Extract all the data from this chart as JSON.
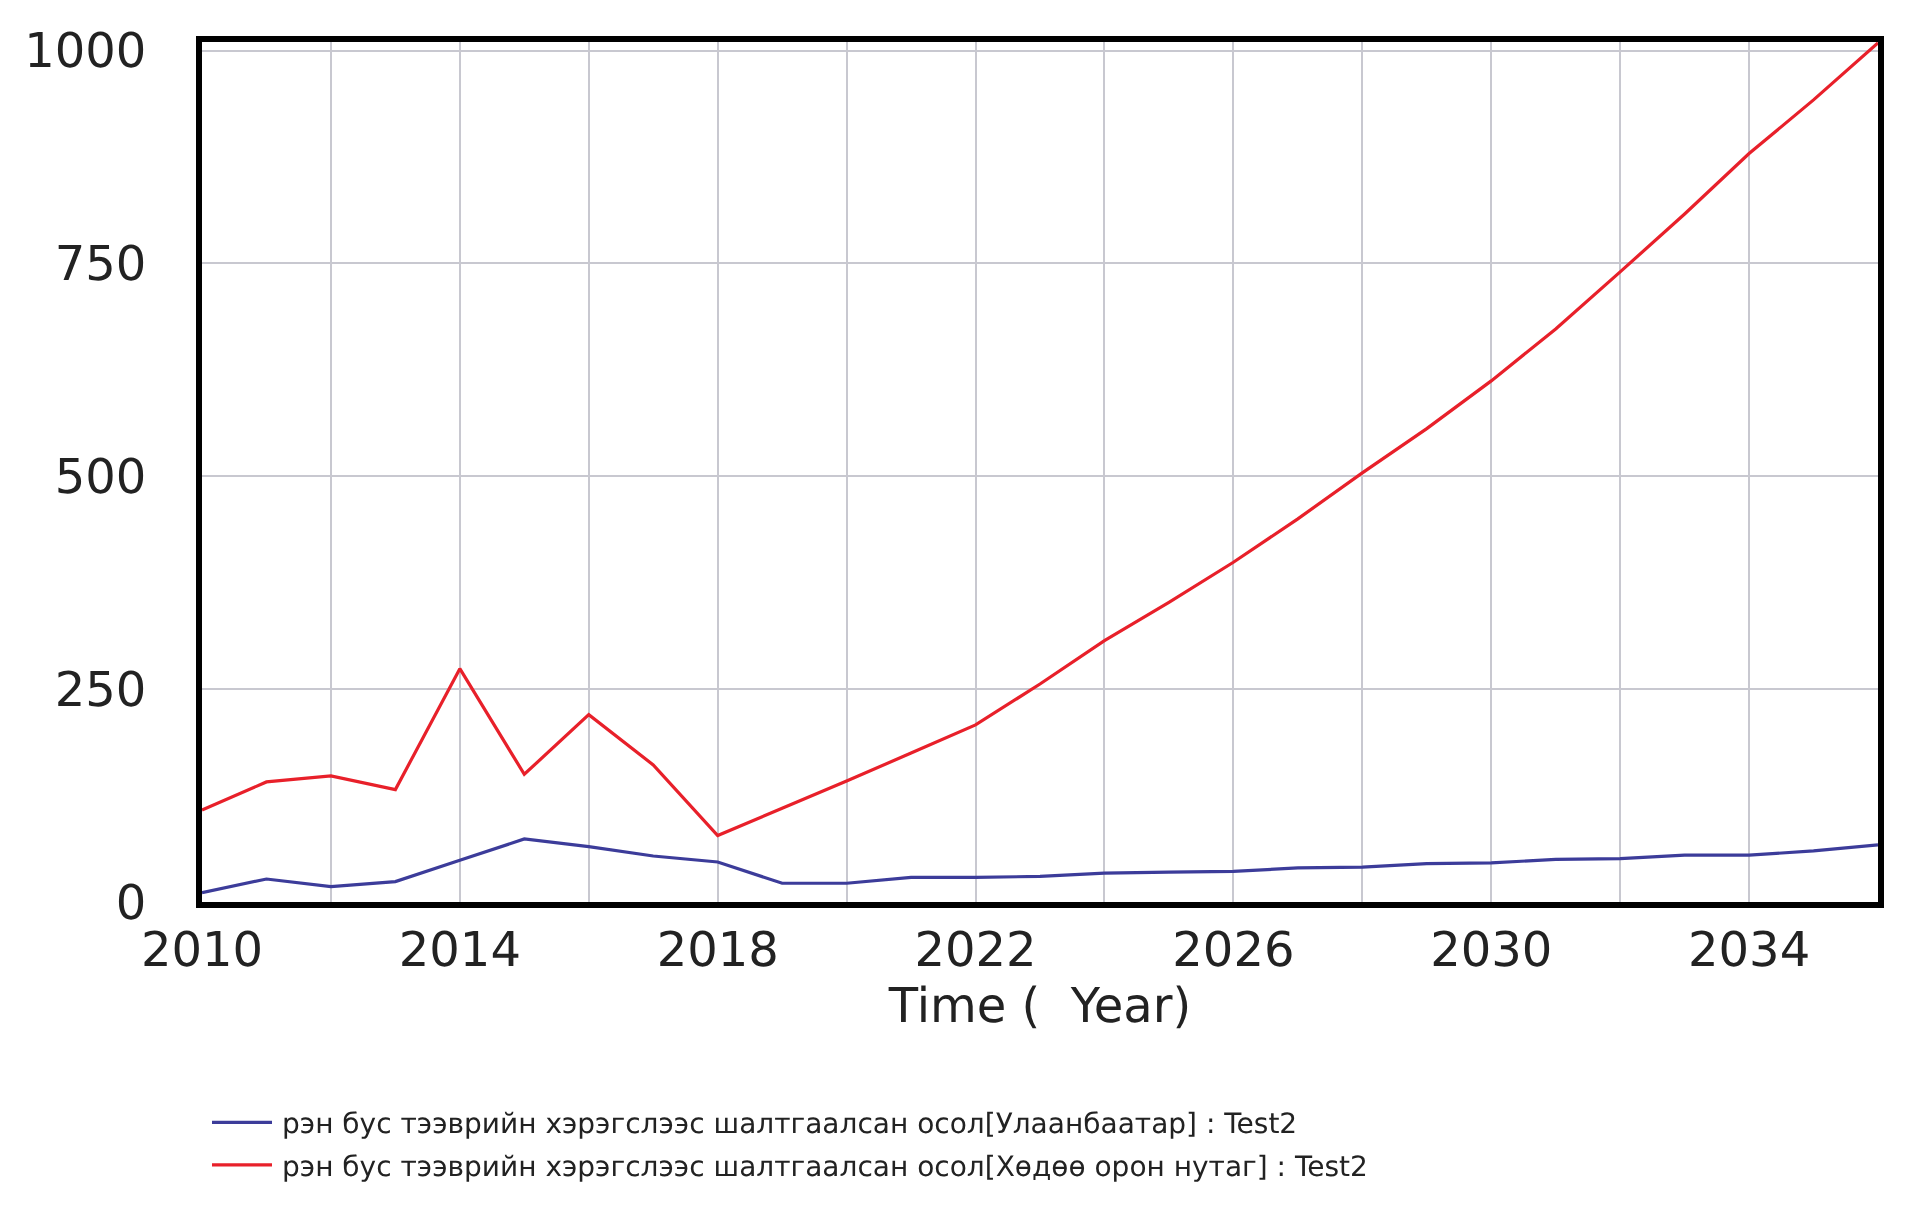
{
  "chart_data": {
    "type": "line",
    "xlabel": "Time (  Year)",
    "x": [
      2010,
      2011,
      2012,
      2013,
      2014,
      2015,
      2016,
      2017,
      2018,
      2019,
      2020,
      2021,
      2022,
      2023,
      2024,
      2025,
      2026,
      2027,
      2028,
      2029,
      2030,
      2031,
      2032,
      2033,
      2034,
      2035,
      2036
    ],
    "series": [
      {
        "name": "рэн бус тээврийн хэрэгслээс шалтгаалсан осол[Улаанбаатар] : Test2",
        "color": "#3c3c9a",
        "values": [
          11,
          27,
          18,
          24,
          49,
          74,
          65,
          54,
          47,
          22,
          22,
          29,
          29,
          30,
          34,
          35,
          36,
          40,
          41,
          45,
          46,
          50,
          51,
          55,
          55,
          60,
          67
        ]
      },
      {
        "name": "рэн бус тээврийн хэрэгслээс шалтгаалсан осол[Хөдөө орон нутаг] : Test2",
        "color": "#e8202a",
        "values": [
          108,
          141,
          148,
          132,
          274,
          150,
          220,
          161,
          78,
          110,
          142,
          175,
          208,
          256,
          307,
          352,
          399,
          450,
          504,
          556,
          612,
          673,
          740,
          808,
          879,
          942,
          1009
        ]
      }
    ],
    "xlim": [
      2010,
      2036
    ],
    "xticks": [
      2010,
      {
        "value": 2012,
        "label": null
      },
      2014,
      {
        "value": 2016,
        "label": null
      },
      2018,
      {
        "value": 2020,
        "label": null
      },
      2022,
      {
        "value": 2024,
        "label": null
      },
      2026,
      {
        "value": 2028,
        "label": null
      },
      2030,
      {
        "value": 2032,
        "label": null
      },
      2034,
      {
        "value": 2036,
        "label": null
      }
    ],
    "ylim": [
      0,
      1010
    ],
    "yticks": [
      0,
      250,
      500,
      750,
      1000
    ],
    "grid": true,
    "legend": "bottom",
    "marker": "none",
    "line_style": "solid"
  }
}
